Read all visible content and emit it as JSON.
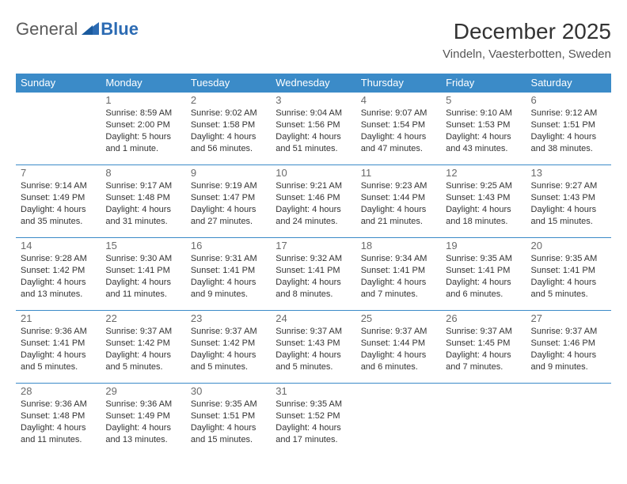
{
  "logo": {
    "general": "General",
    "blue": "Blue"
  },
  "title": "December 2025",
  "location": "Vindeln, Vaesterbotten, Sweden",
  "colors": {
    "header_bg": "#3b8bc8",
    "header_text": "#ffffff",
    "row_border": "#3b8bc8",
    "daynum": "#6a6a6a",
    "info_text": "#333333",
    "logo_gray": "#5a5a5a",
    "logo_blue": "#2c6bb3",
    "background": "#ffffff"
  },
  "typography": {
    "title_fontsize": 28,
    "location_fontsize": 15,
    "th_fontsize": 13,
    "daynum_fontsize": 13,
    "info_fontsize": 11
  },
  "dayHeaders": [
    "Sunday",
    "Monday",
    "Tuesday",
    "Wednesday",
    "Thursday",
    "Friday",
    "Saturday"
  ],
  "weeks": [
    [
      {
        "n": "",
        "sr": "",
        "ss": "",
        "dl": ""
      },
      {
        "n": "1",
        "sr": "Sunrise: 8:59 AM",
        "ss": "Sunset: 2:00 PM",
        "dl": "Daylight: 5 hours and 1 minute."
      },
      {
        "n": "2",
        "sr": "Sunrise: 9:02 AM",
        "ss": "Sunset: 1:58 PM",
        "dl": "Daylight: 4 hours and 56 minutes."
      },
      {
        "n": "3",
        "sr": "Sunrise: 9:04 AM",
        "ss": "Sunset: 1:56 PM",
        "dl": "Daylight: 4 hours and 51 minutes."
      },
      {
        "n": "4",
        "sr": "Sunrise: 9:07 AM",
        "ss": "Sunset: 1:54 PM",
        "dl": "Daylight: 4 hours and 47 minutes."
      },
      {
        "n": "5",
        "sr": "Sunrise: 9:10 AM",
        "ss": "Sunset: 1:53 PM",
        "dl": "Daylight: 4 hours and 43 minutes."
      },
      {
        "n": "6",
        "sr": "Sunrise: 9:12 AM",
        "ss": "Sunset: 1:51 PM",
        "dl": "Daylight: 4 hours and 38 minutes."
      }
    ],
    [
      {
        "n": "7",
        "sr": "Sunrise: 9:14 AM",
        "ss": "Sunset: 1:49 PM",
        "dl": "Daylight: 4 hours and 35 minutes."
      },
      {
        "n": "8",
        "sr": "Sunrise: 9:17 AM",
        "ss": "Sunset: 1:48 PM",
        "dl": "Daylight: 4 hours and 31 minutes."
      },
      {
        "n": "9",
        "sr": "Sunrise: 9:19 AM",
        "ss": "Sunset: 1:47 PM",
        "dl": "Daylight: 4 hours and 27 minutes."
      },
      {
        "n": "10",
        "sr": "Sunrise: 9:21 AM",
        "ss": "Sunset: 1:46 PM",
        "dl": "Daylight: 4 hours and 24 minutes."
      },
      {
        "n": "11",
        "sr": "Sunrise: 9:23 AM",
        "ss": "Sunset: 1:44 PM",
        "dl": "Daylight: 4 hours and 21 minutes."
      },
      {
        "n": "12",
        "sr": "Sunrise: 9:25 AM",
        "ss": "Sunset: 1:43 PM",
        "dl": "Daylight: 4 hours and 18 minutes."
      },
      {
        "n": "13",
        "sr": "Sunrise: 9:27 AM",
        "ss": "Sunset: 1:43 PM",
        "dl": "Daylight: 4 hours and 15 minutes."
      }
    ],
    [
      {
        "n": "14",
        "sr": "Sunrise: 9:28 AM",
        "ss": "Sunset: 1:42 PM",
        "dl": "Daylight: 4 hours and 13 minutes."
      },
      {
        "n": "15",
        "sr": "Sunrise: 9:30 AM",
        "ss": "Sunset: 1:41 PM",
        "dl": "Daylight: 4 hours and 11 minutes."
      },
      {
        "n": "16",
        "sr": "Sunrise: 9:31 AM",
        "ss": "Sunset: 1:41 PM",
        "dl": "Daylight: 4 hours and 9 minutes."
      },
      {
        "n": "17",
        "sr": "Sunrise: 9:32 AM",
        "ss": "Sunset: 1:41 PM",
        "dl": "Daylight: 4 hours and 8 minutes."
      },
      {
        "n": "18",
        "sr": "Sunrise: 9:34 AM",
        "ss": "Sunset: 1:41 PM",
        "dl": "Daylight: 4 hours and 7 minutes."
      },
      {
        "n": "19",
        "sr": "Sunrise: 9:35 AM",
        "ss": "Sunset: 1:41 PM",
        "dl": "Daylight: 4 hours and 6 minutes."
      },
      {
        "n": "20",
        "sr": "Sunrise: 9:35 AM",
        "ss": "Sunset: 1:41 PM",
        "dl": "Daylight: 4 hours and 5 minutes."
      }
    ],
    [
      {
        "n": "21",
        "sr": "Sunrise: 9:36 AM",
        "ss": "Sunset: 1:41 PM",
        "dl": "Daylight: 4 hours and 5 minutes."
      },
      {
        "n": "22",
        "sr": "Sunrise: 9:37 AM",
        "ss": "Sunset: 1:42 PM",
        "dl": "Daylight: 4 hours and 5 minutes."
      },
      {
        "n": "23",
        "sr": "Sunrise: 9:37 AM",
        "ss": "Sunset: 1:42 PM",
        "dl": "Daylight: 4 hours and 5 minutes."
      },
      {
        "n": "24",
        "sr": "Sunrise: 9:37 AM",
        "ss": "Sunset: 1:43 PM",
        "dl": "Daylight: 4 hours and 5 minutes."
      },
      {
        "n": "25",
        "sr": "Sunrise: 9:37 AM",
        "ss": "Sunset: 1:44 PM",
        "dl": "Daylight: 4 hours and 6 minutes."
      },
      {
        "n": "26",
        "sr": "Sunrise: 9:37 AM",
        "ss": "Sunset: 1:45 PM",
        "dl": "Daylight: 4 hours and 7 minutes."
      },
      {
        "n": "27",
        "sr": "Sunrise: 9:37 AM",
        "ss": "Sunset: 1:46 PM",
        "dl": "Daylight: 4 hours and 9 minutes."
      }
    ],
    [
      {
        "n": "28",
        "sr": "Sunrise: 9:36 AM",
        "ss": "Sunset: 1:48 PM",
        "dl": "Daylight: 4 hours and 11 minutes."
      },
      {
        "n": "29",
        "sr": "Sunrise: 9:36 AM",
        "ss": "Sunset: 1:49 PM",
        "dl": "Daylight: 4 hours and 13 minutes."
      },
      {
        "n": "30",
        "sr": "Sunrise: 9:35 AM",
        "ss": "Sunset: 1:51 PM",
        "dl": "Daylight: 4 hours and 15 minutes."
      },
      {
        "n": "31",
        "sr": "Sunrise: 9:35 AM",
        "ss": "Sunset: 1:52 PM",
        "dl": "Daylight: 4 hours and 17 minutes."
      },
      {
        "n": "",
        "sr": "",
        "ss": "",
        "dl": ""
      },
      {
        "n": "",
        "sr": "",
        "ss": "",
        "dl": ""
      },
      {
        "n": "",
        "sr": "",
        "ss": "",
        "dl": ""
      }
    ]
  ]
}
